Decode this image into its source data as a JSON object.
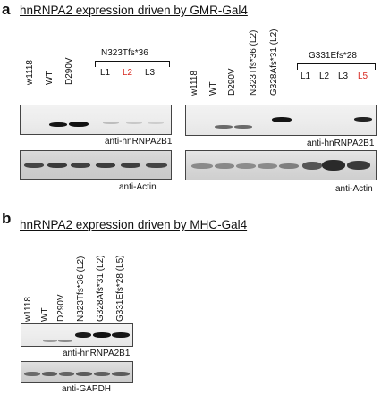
{
  "panel_a": {
    "letter": "a",
    "title": "hnRNPA2 expression driven by GMR-Gal4",
    "left_blot": {
      "lanes_rotated": [
        "w1118",
        "WT",
        "D290V"
      ],
      "group_label": "N323Tfs*36",
      "group_lanes": [
        "L1",
        "L2",
        "L3"
      ],
      "top_caption": "anti-hnRNPA2B1",
      "bottom_caption": "anti-Actin"
    },
    "right_blot": {
      "lanes_rotated": [
        "w1118",
        "WT",
        "D290V",
        "N323Tfs*36 (L2)",
        "G328Afs*31 (L2)"
      ],
      "group_label": "G331Efs*28",
      "group_lanes": [
        "L1",
        "L2",
        "L3",
        "L5"
      ],
      "top_caption": "anti-hnRNPA2B1",
      "bottom_caption": "anti-Actin"
    }
  },
  "panel_b": {
    "letter": "b",
    "title": "hnRNPA2 expression driven by MHC-Gal4",
    "lanes_rotated": [
      "w1118",
      "WT",
      "D290V",
      "N323Tfs*36 (L2)",
      "G328Afs*31 (L2)",
      "G331Efs*28 (L5)"
    ],
    "top_caption": "anti-hnRNPA2B1",
    "bottom_caption": "anti-GAPDH"
  },
  "colors": {
    "highlight": "#d7261e",
    "band": "#1a1a1a"
  }
}
